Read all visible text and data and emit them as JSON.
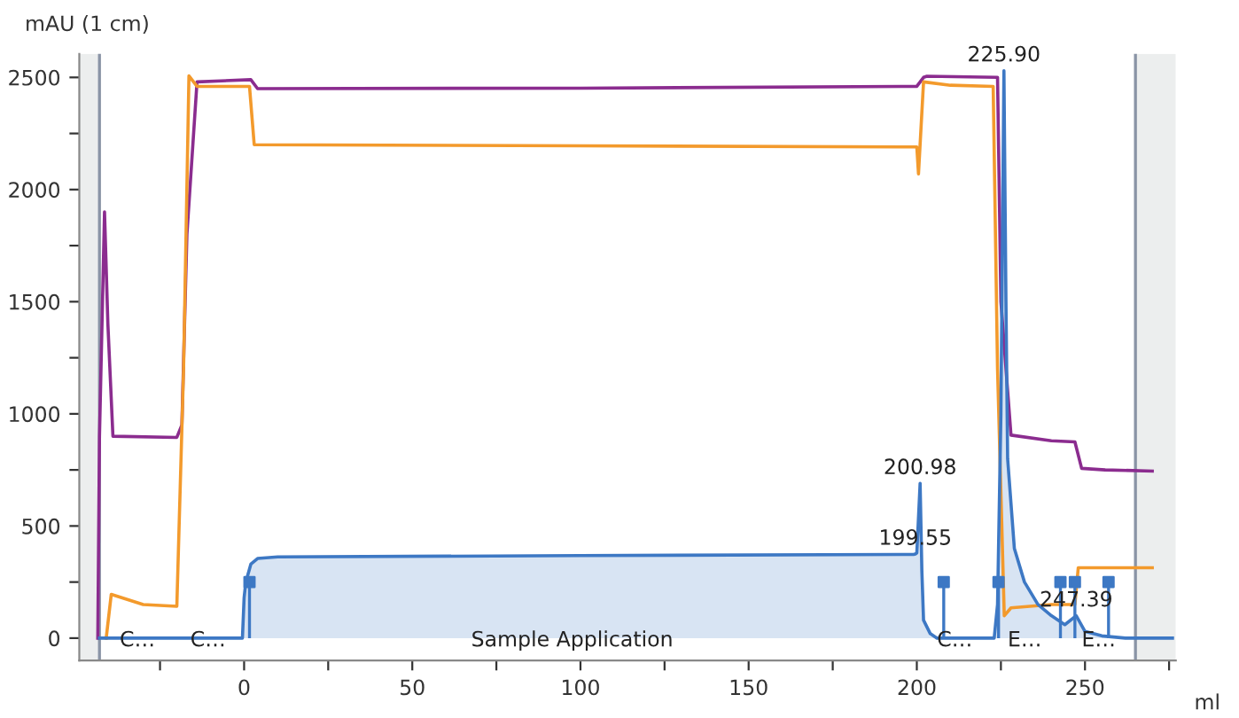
{
  "chart_data": {
    "type": "line",
    "ylabel": "mAU (1 cm)",
    "xlabel": "ml",
    "xlim": [
      -49,
      277
    ],
    "ylim": [
      -100,
      2605
    ],
    "xticks": [
      {
        "value": -25,
        "label": null
      },
      0,
      {
        "value": 25,
        "label": null
      },
      50,
      {
        "value": 75,
        "label": null
      },
      100,
      {
        "value": 125,
        "label": null
      },
      150,
      {
        "value": 175,
        "label": null
      },
      200,
      {
        "value": 225,
        "label": null
      },
      250,
      {
        "value": 275,
        "label": null
      }
    ],
    "yticks": [
      0,
      {
        "value": 250,
        "label": null
      },
      500,
      {
        "value": 750,
        "label": null
      },
      1000,
      {
        "value": 1250,
        "label": null
      },
      1500,
      {
        "value": 1750,
        "label": null
      },
      2000,
      {
        "value": 2250,
        "label": null
      },
      2500
    ],
    "grid": false,
    "legend": false,
    "bands": [
      {
        "axis": "x",
        "from": -49,
        "to": -43,
        "color": "#eceeee"
      },
      {
        "axis": "x",
        "from": 265,
        "to": 277,
        "color": "#eceeee"
      }
    ],
    "ref_lines": [
      {
        "axis": "x",
        "value": -43,
        "color": "#8a94a6"
      },
      {
        "axis": "x",
        "value": 265,
        "color": "#8a94a6"
      }
    ],
    "series": [
      {
        "type": "line",
        "color": "#8b2c8f",
        "x": [
          -43.5,
          -43,
          -41.5,
          -40.5,
          -39,
          -20,
          -18.5,
          -17,
          -14,
          2,
          4,
          100,
          200,
          202,
          203,
          224,
          225,
          228,
          240,
          247,
          249,
          256,
          270
        ],
        "values": [
          0,
          900,
          1900,
          1400,
          900,
          895,
          950,
          1800,
          2480,
          2490,
          2450,
          2452,
          2460,
          2500,
          2505,
          2500,
          1500,
          905,
          880,
          875,
          757,
          750,
          745
        ]
      },
      {
        "type": "line",
        "color": "#f39a2c",
        "x": [
          -41,
          -39.5,
          -30,
          -20,
          -18,
          -16.4,
          -14,
          1.6,
          3,
          100,
          200,
          200.5,
          202,
          210,
          222.7,
          224,
          226,
          228,
          240,
          247,
          248,
          270
        ],
        "values": [
          0,
          195,
          150,
          142,
          1200,
          2507,
          2460,
          2460,
          2200,
          2195,
          2190,
          2070,
          2480,
          2465,
          2460,
          1200,
          100,
          135,
          150,
          150,
          314,
          314
        ]
      },
      {
        "type": "area",
        "color": "#3d78c4",
        "x": [
          -43,
          -0.5,
          0,
          0.5,
          2,
          4,
          10,
          100,
          199,
          199.55,
          200,
          200.98,
          201.5,
          202,
          204,
          206,
          223,
          224,
          225,
          225.9,
          226.5,
          227,
          229,
          232,
          236,
          240,
          244,
          247.39,
          250,
          255,
          262,
          276
        ],
        "values": [
          0,
          0,
          180,
          250,
          330,
          355,
          362,
          368,
          373,
          375,
          380,
          690,
          300,
          80,
          20,
          0,
          0,
          150,
          1000,
          2530,
          1500,
          800,
          400,
          250,
          150,
          100,
          60,
          100,
          30,
          10,
          0,
          0
        ]
      },
      {
        "type": "lollipop",
        "color": "#3d78c4",
        "marker": "square",
        "x": [
          1.6,
          208,
          224.3,
          242.7,
          247,
          257
        ],
        "values": [
          250,
          250,
          250,
          250,
          250,
          250
        ]
      }
    ],
    "annotations": [
      {
        "text": "225.90",
        "x": 225.9,
        "y": 2530
      },
      {
        "text": "200.98",
        "x": 200.98,
        "y": 690
      },
      {
        "text": "199.55",
        "x": 199.55,
        "y": 375
      },
      {
        "text": "247.39",
        "x": 247.39,
        "y": 100
      },
      {
        "text": "C…",
        "x": -37,
        "y": 0
      },
      {
        "text": "C…",
        "x": -16,
        "y": 0
      },
      {
        "text": "Sample Application",
        "x": 67.5,
        "y": 0
      },
      {
        "text": "C…",
        "x": 206,
        "y": 0
      },
      {
        "text": "E…",
        "x": 227,
        "y": 0
      },
      {
        "text": "E…",
        "x": 249,
        "y": 0
      }
    ]
  }
}
